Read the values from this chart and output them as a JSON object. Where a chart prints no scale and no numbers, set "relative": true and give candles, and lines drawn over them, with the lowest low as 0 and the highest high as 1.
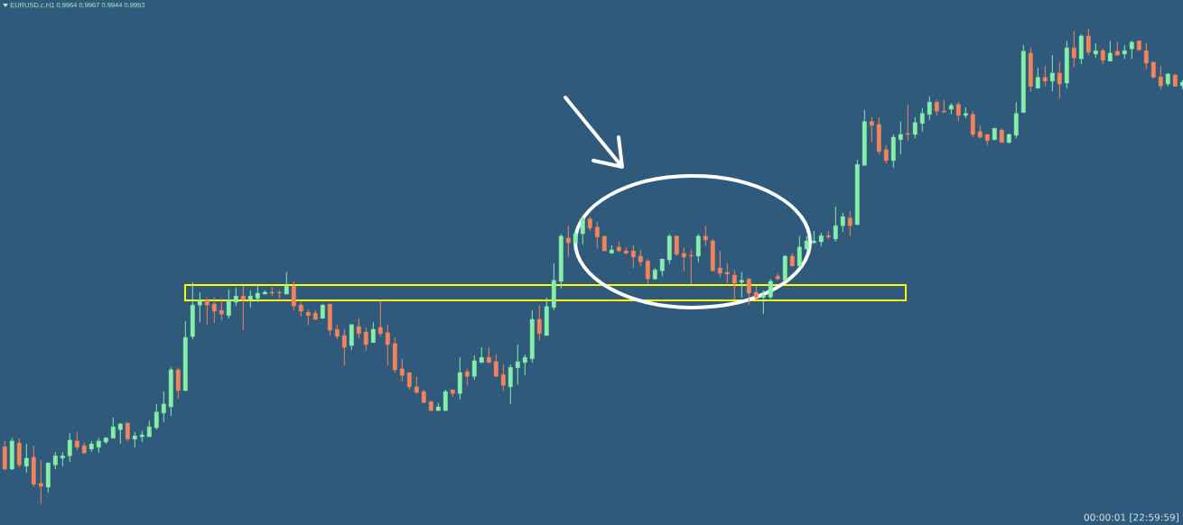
{
  "chart_data": {
    "type": "candlestick",
    "title": "EURUSD.c,H1 0.9964 0.9967 0.9944 0.9953",
    "annotations": [
      "00:00:01 [22:59:59]"
    ],
    "relative": true,
    "categories": [
      null,
      null,
      null,
      null,
      null,
      null,
      null,
      null,
      null,
      null,
      null,
      null,
      null,
      null,
      null,
      null,
      null,
      null,
      null,
      null,
      null,
      null,
      null,
      null,
      null,
      null,
      null,
      null,
      null,
      null,
      null,
      null,
      null,
      null,
      null,
      null,
      null,
      null,
      null,
      null,
      null,
      null,
      null,
      null,
      null,
      null,
      null,
      null,
      null,
      null,
      null,
      null,
      null,
      null,
      null,
      null,
      null,
      null,
      null,
      null,
      null,
      null,
      null,
      null,
      null,
      null,
      null,
      null,
      null,
      null,
      null,
      null,
      null,
      null,
      null,
      null,
      null,
      null,
      null,
      null,
      null,
      null,
      null,
      null,
      null,
      null,
      null,
      null,
      null,
      null,
      null,
      null,
      null,
      null,
      null,
      null,
      null,
      null,
      null,
      null,
      null,
      null,
      null,
      null,
      null,
      null,
      null,
      null,
      null,
      null,
      null,
      null,
      null,
      null,
      null,
      null,
      null,
      null,
      null,
      null,
      null,
      null,
      null,
      null,
      null,
      null,
      null,
      null,
      null,
      null,
      null,
      null,
      null,
      null,
      null,
      null,
      null,
      null,
      null,
      null,
      null,
      null,
      null,
      null,
      null,
      null,
      null,
      null,
      null,
      null,
      null,
      null,
      null,
      null,
      null,
      null,
      null,
      null,
      null,
      null,
      null,
      null,
      null,
      null
    ],
    "ohlc": [
      [
        0.121,
        0.133,
        0.072,
        0.074
      ],
      [
        0.074,
        0.139,
        0.072,
        0.133
      ],
      [
        0.129,
        0.139,
        0.078,
        0.083
      ],
      [
        0.08,
        0.127,
        0.066,
        0.097
      ],
      [
        0.099,
        0.123,
        0.036,
        0.042
      ],
      [
        0.044,
        0.093,
        0,
        0.038
      ],
      [
        0.036,
        0.087,
        0.025,
        0.087
      ],
      [
        0.083,
        0.11,
        0.074,
        0.102
      ],
      [
        0.097,
        0.11,
        0.08,
        0.102
      ],
      [
        0.102,
        0.15,
        0.089,
        0.135
      ],
      [
        0.133,
        0.152,
        0.114,
        0.12
      ],
      [
        0.123,
        0.129,
        0.106,
        0.108
      ],
      [
        0.116,
        0.133,
        0.11,
        0.127
      ],
      [
        0.12,
        0.139,
        0.108,
        0.133
      ],
      [
        0.131,
        0.14,
        0.127,
        0.14
      ],
      [
        0.139,
        0.182,
        0.139,
        0.163
      ],
      [
        0.157,
        0.171,
        0.127,
        0.169
      ],
      [
        0.171,
        0.171,
        0.133,
        0.137
      ],
      [
        0.137,
        0.152,
        0.12,
        0.144
      ],
      [
        0.142,
        0.154,
        0.131,
        0.146
      ],
      [
        0.142,
        0.176,
        0.142,
        0.163
      ],
      [
        0.161,
        0.211,
        0.157,
        0.194
      ],
      [
        0.192,
        0.237,
        0.173,
        0.211
      ],
      [
        0.205,
        0.288,
        0.186,
        0.283
      ],
      [
        0.283,
        0.288,
        0.222,
        0.239
      ],
      [
        0.239,
        0.385,
        0.239,
        0.351
      ],
      [
        0.353,
        0.467,
        0.347,
        0.419
      ],
      [
        0.419,
        0.446,
        0.383,
        0.429
      ],
      [
        0.429,
        0.433,
        0.378,
        0.419
      ],
      [
        0.421,
        0.435,
        0.381,
        0.406
      ],
      [
        0.408,
        0.433,
        0.387,
        0.4
      ],
      [
        0.397,
        0.452,
        0.391,
        0.429
      ],
      [
        0.425,
        0.455,
        0.417,
        0.438
      ],
      [
        0.438,
        0.459,
        0.366,
        0.431
      ],
      [
        0.431,
        0.45,
        0.414,
        0.438
      ],
      [
        0.433,
        0.459,
        0.425,
        0.444
      ],
      [
        0.442,
        0.45,
        0.442,
        0.446
      ],
      [
        0.446,
        0.457,
        0.438,
        0.444
      ],
      [
        0.446,
        0.45,
        0.433,
        0.444
      ],
      [
        0.442,
        0.488,
        0.442,
        0.459
      ],
      [
        0.459,
        0.469,
        0.408,
        0.417
      ],
      [
        0.419,
        0.425,
        0.395,
        0.406
      ],
      [
        0.404,
        0.41,
        0.376,
        0.397
      ],
      [
        0.402,
        0.408,
        0.387,
        0.389
      ],
      [
        0.391,
        0.421,
        0.391,
        0.419
      ],
      [
        0.421,
        0.421,
        0.355,
        0.366
      ],
      [
        0.368,
        0.378,
        0.347,
        0.353
      ],
      [
        0.355,
        0.368,
        0.292,
        0.33
      ],
      [
        0.334,
        0.378,
        0.324,
        0.378
      ],
      [
        0.374,
        0.391,
        0.349,
        0.359
      ],
      [
        0.362,
        0.372,
        0.323,
        0.336
      ],
      [
        0.34,
        0.383,
        0.34,
        0.368
      ],
      [
        0.372,
        0.427,
        0.353,
        0.359
      ],
      [
        0.361,
        0.378,
        0.292,
        0.336
      ],
      [
        0.338,
        0.351,
        0.277,
        0.283
      ],
      [
        0.285,
        0.306,
        0.258,
        0.271
      ],
      [
        0.277,
        0.277,
        0.241,
        0.247
      ],
      [
        0.247,
        0.269,
        0.233,
        0.235
      ],
      [
        0.237,
        0.241,
        0.213,
        0.214
      ],
      [
        0.216,
        0.218,
        0.197,
        0.197
      ],
      [
        0.197,
        0.213,
        0.197,
        0.205
      ],
      [
        0.197,
        0.241,
        0.197,
        0.237
      ],
      [
        0.241,
        0.241,
        0.226,
        0.233
      ],
      [
        0.233,
        0.309,
        0.22,
        0.277
      ],
      [
        0.279,
        0.285,
        0.25,
        0.269
      ],
      [
        0.269,
        0.313,
        0.262,
        0.302
      ],
      [
        0.298,
        0.33,
        0.298,
        0.309
      ],
      [
        0.309,
        0.33,
        0.298,
        0.298
      ],
      [
        0.3,
        0.315,
        0.269,
        0.269
      ],
      [
        0.273,
        0.294,
        0.239,
        0.25
      ],
      [
        0.247,
        0.294,
        0.211,
        0.288
      ],
      [
        0.287,
        0.336,
        0.252,
        0.3
      ],
      [
        0.298,
        0.315,
        0.271,
        0.309
      ],
      [
        0.306,
        0.408,
        0.298,
        0.389
      ],
      [
        0.389,
        0.419,
        0.345,
        0.359
      ],
      [
        0.355,
        0.435,
        0.355,
        0.416
      ],
      [
        0.414,
        0.507,
        0.408,
        0.471
      ],
      [
        0.469,
        0.569,
        0.454,
        0.564
      ],
      [
        0.56,
        0.586,
        0.52,
        0.55
      ],
      [
        0.55,
        0.573,
        0.546,
        0.569
      ],
      [
        0.569,
        0.605,
        0.546,
        0.602
      ],
      [
        0.6,
        0.605,
        0.575,
        0.581
      ],
      [
        0.583,
        0.594,
        0.539,
        0.562
      ],
      [
        0.564,
        0.564,
        0.533,
        0.533
      ],
      [
        0.528,
        0.545,
        0.528,
        0.535
      ],
      [
        0.541,
        0.552,
        0.531,
        0.533
      ],
      [
        0.533,
        0.541,
        0.526,
        0.528
      ],
      [
        0.533,
        0.545,
        0.497,
        0.52
      ],
      [
        0.522,
        0.535,
        0.501,
        0.51
      ],
      [
        0.512,
        0.516,
        0.463,
        0.474
      ],
      [
        0.474,
        0.497,
        0.472,
        0.493
      ],
      [
        0.491,
        0.516,
        0.48,
        0.516
      ],
      [
        0.514,
        0.569,
        0.505,
        0.564
      ],
      [
        0.564,
        0.565,
        0.522,
        0.526
      ],
      [
        0.528,
        0.541,
        0.49,
        0.52
      ],
      [
        0.524,
        0.535,
        0.463,
        0.522
      ],
      [
        0.522,
        0.569,
        0.509,
        0.564
      ],
      [
        0.564,
        0.586,
        0.543,
        0.556
      ],
      [
        0.554,
        0.558,
        0.491,
        0.491
      ],
      [
        0.497,
        0.533,
        0.478,
        0.486
      ],
      [
        0.488,
        0.507,
        0.465,
        0.484
      ],
      [
        0.482,
        0.493,
        0.431,
        0.465
      ],
      [
        0.467,
        0.488,
        0.435,
        0.471
      ],
      [
        0.474,
        0.476,
        0.419,
        0.444
      ],
      [
        0.446,
        0.459,
        0.429,
        0.435
      ],
      [
        0.435,
        0.45,
        0.4,
        0.44
      ],
      [
        0.436,
        0.474,
        0.431,
        0.469
      ],
      [
        0.48,
        0.486,
        0.472,
        0.474
      ],
      [
        0.471,
        0.524,
        0.469,
        0.522
      ],
      [
        0.522,
        0.528,
        0.501,
        0.501
      ],
      [
        0.501,
        0.564,
        0.501,
        0.541
      ],
      [
        0.537,
        0.564,
        0.535,
        0.554
      ],
      [
        0.55,
        0.575,
        0.548,
        0.554
      ],
      [
        0.552,
        0.571,
        0.543,
        0.565
      ],
      [
        0.565,
        0.575,
        0.558,
        0.562
      ],
      [
        0.558,
        0.626,
        0.552,
        0.586
      ],
      [
        0.586,
        0.613,
        0.573,
        0.605
      ],
      [
        0.602,
        0.617,
        0.564,
        0.586
      ],
      [
        0.588,
        0.725,
        0.588,
        0.715
      ],
      [
        0.713,
        0.829,
        0.712,
        0.805
      ],
      [
        0.805,
        0.814,
        0.761,
        0.797
      ],
      [
        0.799,
        0.814,
        0.736,
        0.742
      ],
      [
        0.746,
        0.755,
        0.717,
        0.723
      ],
      [
        0.723,
        0.778,
        0.708,
        0.772
      ],
      [
        0.767,
        0.805,
        0.736,
        0.778
      ],
      [
        0.78,
        0.841,
        0.765,
        0.778
      ],
      [
        0.778,
        0.814,
        0.77,
        0.803
      ],
      [
        0.801,
        0.833,
        0.784,
        0.822
      ],
      [
        0.82,
        0.858,
        0.808,
        0.846
      ],
      [
        0.846,
        0.85,
        0.818,
        0.827
      ],
      [
        0.827,
        0.85,
        0.824,
        0.825
      ],
      [
        0.831,
        0.844,
        0.82,
        0.839
      ],
      [
        0.841,
        0.846,
        0.806,
        0.818
      ],
      [
        0.818,
        0.835,
        0.812,
        0.822
      ],
      [
        0.82,
        0.827,
        0.772,
        0.778
      ],
      [
        0.784,
        0.797,
        0.77,
        0.772
      ],
      [
        0.778,
        0.778,
        0.755,
        0.765
      ],
      [
        0.767,
        0.791,
        0.765,
        0.791
      ],
      [
        0.787,
        0.791,
        0.761,
        0.761
      ],
      [
        0.761,
        0.78,
        0.759,
        0.778
      ],
      [
        0.776,
        0.846,
        0.77,
        0.822
      ],
      [
        0.824,
        0.966,
        0.824,
        0.953
      ],
      [
        0.949,
        0.96,
        0.867,
        0.879
      ],
      [
        0.875,
        0.918,
        0.875,
        0.898
      ],
      [
        0.898,
        0.922,
        0.879,
        0.89
      ],
      [
        0.89,
        0.945,
        0.869,
        0.907
      ],
      [
        0.907,
        0.93,
        0.854,
        0.884
      ],
      [
        0.886,
        0.975,
        0.875,
        0.96
      ],
      [
        0.96,
        0.996,
        0.92,
        0.939
      ],
      [
        0.937,
        0.989,
        0.926,
        0.985
      ],
      [
        0.985,
        1,
        0.945,
        0.951
      ],
      [
        0.947,
        0.97,
        0.939,
        0.954
      ],
      [
        0.954,
        0.958,
        0.926,
        0.934
      ],
      [
        0.932,
        0.975,
        0.932,
        0.949
      ],
      [
        0.953,
        0.972,
        0.943,
        0.945
      ],
      [
        0.947,
        0.966,
        0.937,
        0.954
      ],
      [
        0.958,
        0.975,
        0.937,
        0.972
      ],
      [
        0.975,
        0.975,
        0.953,
        0.956
      ],
      [
        0.954,
        0.97,
        0.915,
        0.928
      ],
      [
        0.93,
        0.93,
        0.896,
        0.898
      ],
      [
        0.899,
        0.922,
        0.873,
        0.88
      ],
      [
        0.884,
        0.907,
        0.879,
        0.905
      ],
      [
        0.903,
        0.905,
        0.879,
        0.879
      ],
      [
        0.88,
        0.892,
        0.873,
        0.888
      ]
    ],
    "colors": [
      "#f4845c",
      "#86eea8",
      "#f4845c",
      "#86eea8",
      "#f4845c",
      "#f4845c",
      "#86eea8",
      "#86eea8",
      "#86eea8",
      "#86eea8",
      "#f4845c",
      "#f4845c",
      "#86eea8",
      "#86eea8",
      "#86eea8",
      "#86eea8",
      "#86eea8",
      "#f4845c",
      "#86eea8",
      "#86eea8",
      "#86eea8",
      "#86eea8",
      "#86eea8",
      "#86eea8",
      "#f4845c",
      "#86eea8",
      "#86eea8",
      "#86eea8",
      "#f4845c",
      "#f4845c",
      "#f4845c",
      "#86eea8",
      "#86eea8",
      "#f4845c",
      "#86eea8",
      "#86eea8",
      "#86eea8",
      "#f4845c",
      "#f4845c",
      "#86eea8",
      "#f4845c",
      "#f4845c",
      "#f4845c",
      "#f4845c",
      "#86eea8",
      "#f4845c",
      "#f4845c",
      "#f4845c",
      "#86eea8",
      "#f4845c",
      "#f4845c",
      "#86eea8",
      "#f4845c",
      "#f4845c",
      "#f4845c",
      "#f4845c",
      "#f4845c",
      "#f4845c",
      "#f4845c",
      "#f4845c",
      "#86eea8",
      "#86eea8",
      "#f4845c",
      "#86eea8",
      "#f4845c",
      "#86eea8",
      "#86eea8",
      "#f4845c",
      "#f4845c",
      "#f4845c",
      "#86eea8",
      "#86eea8",
      "#86eea8",
      "#86eea8",
      "#f4845c",
      "#86eea8",
      "#86eea8",
      "#86eea8",
      "#f4845c",
      "#86eea8",
      "#86eea8",
      "#f4845c",
      "#f4845c",
      "#f4845c",
      "#86eea8",
      "#f4845c",
      "#f4845c",
      "#f4845c",
      "#f4845c",
      "#f4845c",
      "#86eea8",
      "#86eea8",
      "#86eea8",
      "#f4845c",
      "#f4845c",
      "#f4845c",
      "#86eea8",
      "#f4845c",
      "#f4845c",
      "#f4845c",
      "#f4845c",
      "#f4845c",
      "#86eea8",
      "#f4845c",
      "#f4845c",
      "#86eea8",
      "#86eea8",
      "#f4845c",
      "#86eea8",
      "#f4845c",
      "#86eea8",
      "#86eea8",
      "#86eea8",
      "#86eea8",
      "#f4845c",
      "#86eea8",
      "#86eea8",
      "#f4845c",
      "#86eea8",
      "#86eea8",
      "#f4845c",
      "#f4845c",
      "#f4845c",
      "#86eea8",
      "#86eea8",
      "#f4845c",
      "#86eea8",
      "#86eea8",
      "#86eea8",
      "#f4845c",
      "#f4845c",
      "#86eea8",
      "#f4845c",
      "#86eea8",
      "#f4845c",
      "#f4845c",
      "#f4845c",
      "#86eea8",
      "#f4845c",
      "#86eea8",
      "#86eea8",
      "#86eea8",
      "#f4845c",
      "#86eea8",
      "#f4845c",
      "#86eea8",
      "#f4845c",
      "#86eea8",
      "#f4845c",
      "#86eea8",
      "#f4845c",
      "#86eea8",
      "#f4845c",
      "#86eea8",
      "#f4845c",
      "#86eea8",
      "#86eea8",
      "#f4845c",
      "#f4845c",
      "#f4845c",
      "#f4845c",
      "#86eea8",
      "#f4845c",
      "#86eea8"
    ]
  }
}
